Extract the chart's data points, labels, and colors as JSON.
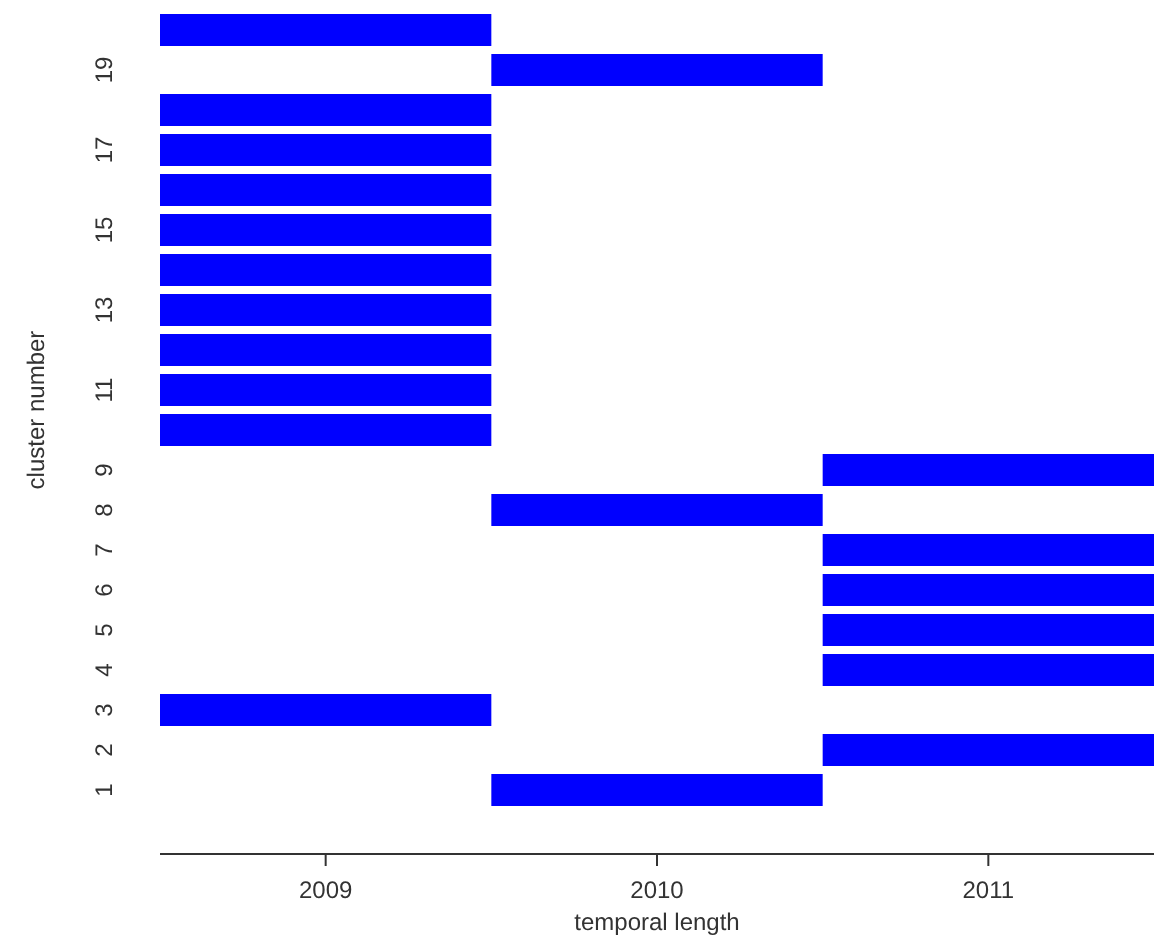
{
  "chart_data": {
    "type": "bar",
    "orientation": "horizontal",
    "xlabel": "temporal length",
    "ylabel": "cluster number",
    "categories": [
      null,
      "19",
      null,
      "17",
      null,
      "15",
      null,
      "13",
      null,
      "11",
      null,
      "9",
      "8",
      "7",
      "6",
      "5",
      "4",
      "3",
      "2",
      "1"
    ],
    "base": [
      2008.5,
      2009.5,
      2008.5,
      2008.5,
      2008.5,
      2008.5,
      2008.5,
      2008.5,
      2008.5,
      2008.5,
      2008.5,
      2010.5,
      2009.5,
      2010.5,
      2010.5,
      2010.5,
      2010.5,
      2008.5,
      2010.5,
      2009.5
    ],
    "values": [
      1,
      1,
      1,
      1,
      1,
      1,
      1,
      1,
      1,
      1,
      1,
      1,
      1,
      1,
      1,
      1,
      1,
      1,
      1,
      1
    ],
    "color": "#0000ff",
    "xlim": [
      2008.5,
      2011.5
    ],
    "xticks": [
      2009,
      2010,
      2011
    ],
    "grid": false
  }
}
